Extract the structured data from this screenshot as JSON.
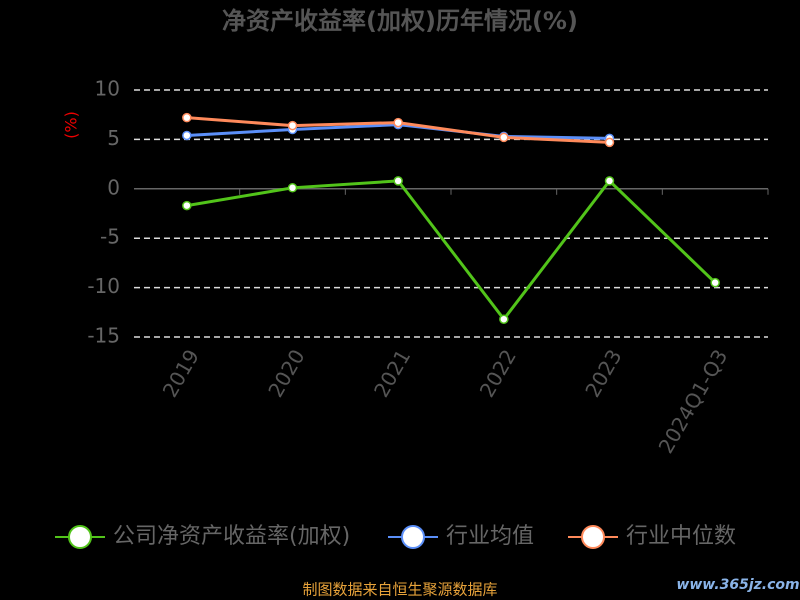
{
  "chart_data": {
    "type": "line",
    "title": "净资产收益率(加权)历年情况(%)",
    "y_label": "(%)",
    "categories": [
      "2019",
      "2020",
      "2021",
      "2022",
      "2023",
      "2024Q1-Q3"
    ],
    "series": [
      {
        "name": "公司净资产收益率(加权)",
        "color": "#52c41a",
        "values": [
          -1.7,
          0.1,
          0.8,
          -13.2,
          0.8,
          -9.5
        ]
      },
      {
        "name": "行业均值",
        "color": "#5b8ff9",
        "values": [
          5.4,
          6.0,
          6.5,
          5.3,
          5.1,
          null
        ]
      },
      {
        "name": "行业中位数",
        "color": "#ff8a5b",
        "values": [
          7.2,
          6.4,
          6.7,
          5.2,
          4.7,
          null
        ]
      }
    ],
    "ylim": [
      -15,
      10
    ],
    "yticks": [
      10,
      5,
      0,
      -5,
      -10,
      -15
    ],
    "grid": true,
    "footer": "制图数据来自恒生聚源数据库",
    "watermark": "www.365jz.com"
  }
}
